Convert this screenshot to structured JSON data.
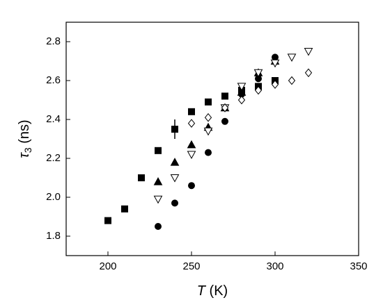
{
  "chart_data": {
    "type": "scatter",
    "xlabel": {
      "symbol": "T",
      "unit": "(K)"
    },
    "ylabel": {
      "symbol": "τ",
      "subscript": "3",
      "unit": "(ns)"
    },
    "xlim": [
      175,
      350
    ],
    "xticks": [
      200,
      250,
      300,
      350
    ],
    "ylim": [
      1.7,
      2.9
    ],
    "yticks": [
      1.8,
      {
        "value": 2,
        "label": "2.0"
      },
      2.2,
      2.4,
      2.6,
      2.8
    ],
    "series": [
      {
        "marker": "square",
        "filled": true,
        "color": "#000000",
        "x": [
          200,
          210,
          220,
          230,
          240,
          250,
          260,
          270,
          280,
          290,
          300
        ],
        "values": [
          1.88,
          1.94,
          2.1,
          2.24,
          2.35,
          2.44,
          2.49,
          2.52,
          2.55,
          2.57,
          2.6
        ],
        "errors": [
          null,
          null,
          null,
          null,
          0.05,
          null,
          null,
          null,
          null,
          null,
          null
        ]
      },
      {
        "marker": "circle",
        "filled": true,
        "color": "#000000",
        "x": [
          230,
          240,
          250,
          260,
          270,
          280,
          290,
          300
        ],
        "values": [
          1.85,
          1.97,
          2.06,
          2.23,
          2.39,
          2.53,
          2.61,
          2.72
        ]
      },
      {
        "marker": "triangle-up",
        "filled": true,
        "color": "#000000",
        "x": [
          230,
          240,
          250,
          260,
          270,
          280,
          290,
          300
        ],
        "values": [
          2.08,
          2.18,
          2.27,
          2.36,
          2.46,
          2.54,
          2.64,
          2.7
        ]
      },
      {
        "marker": "triangle-down",
        "filled": false,
        "color": "#000000",
        "x": [
          230,
          240,
          250,
          260,
          270,
          280,
          290,
          300,
          310,
          320
        ],
        "values": [
          1.99,
          2.1,
          2.22,
          2.34,
          2.46,
          2.57,
          2.64,
          2.69,
          2.72,
          2.75
        ]
      },
      {
        "marker": "diamond",
        "filled": false,
        "color": "#000000",
        "x": [
          250,
          260,
          270,
          280,
          290,
          300,
          310,
          320
        ],
        "values": [
          2.38,
          2.41,
          2.46,
          2.5,
          2.55,
          2.58,
          2.6,
          2.64
        ]
      }
    ]
  }
}
